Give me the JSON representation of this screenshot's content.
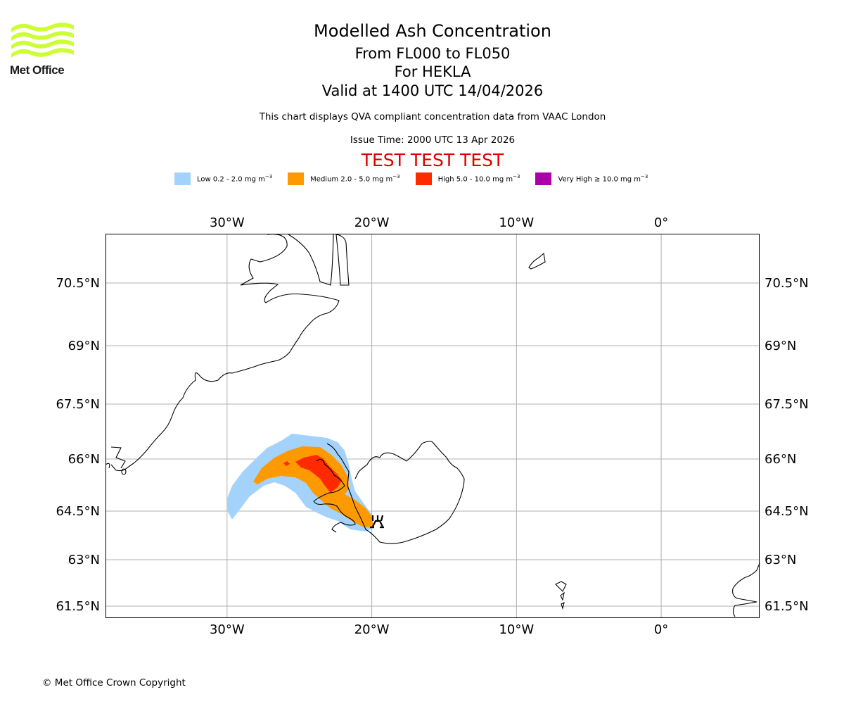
{
  "logo": {
    "name": "Met Office",
    "color": "#ccff33"
  },
  "header": {
    "title": "Modelled Ash Concentration",
    "level_range": "From FL000 to FL050",
    "volcano_line": "For HEKLA",
    "valid_time": "Valid at 1400 UTC 14/04/2026",
    "description": "This chart displays QVA compliant concentration data from VAAC London",
    "issue_time": "Issue Time: 2000 UTC 13 Apr 2026",
    "test_banner": "TEST TEST TEST",
    "test_color": "#dd0000"
  },
  "legend": [
    {
      "label": "Low 0.2 - 2.0 mg m",
      "unit_exp": "−3",
      "color": "#a3d3fd"
    },
    {
      "label": "Medium 2.0 - 5.0 mg m",
      "unit_exp": "−3",
      "color": "#ff9900"
    },
    {
      "label": "High 5.0 - 10.0 mg m",
      "unit_exp": "−3",
      "color": "#ff2a00"
    },
    {
      "label": "Very High  ≥  10.0 mg m",
      "unit_exp": "−3",
      "color": "#aa00aa"
    }
  ],
  "map": {
    "volcano": "HEKLA",
    "lon_range": [
      -38.4,
      6.8
    ],
    "lat_range": [
      61.2,
      71.8
    ],
    "lon_ticks": [
      -30,
      -20,
      -10,
      0
    ],
    "lon_tick_labels": [
      "30°W",
      "20°W",
      "10°W",
      "0°"
    ],
    "lat_ticks": [
      70.5,
      69,
      67.5,
      66,
      64.5,
      63,
      61.5
    ],
    "lat_tick_labels": [
      "70.5°N",
      "69°N",
      "67.5°N",
      "66°N",
      "64.5°N",
      "63°N",
      "61.5°N"
    ],
    "gridlines": true
  },
  "footer": {
    "copyright": "© Met Office Crown Copyright"
  }
}
